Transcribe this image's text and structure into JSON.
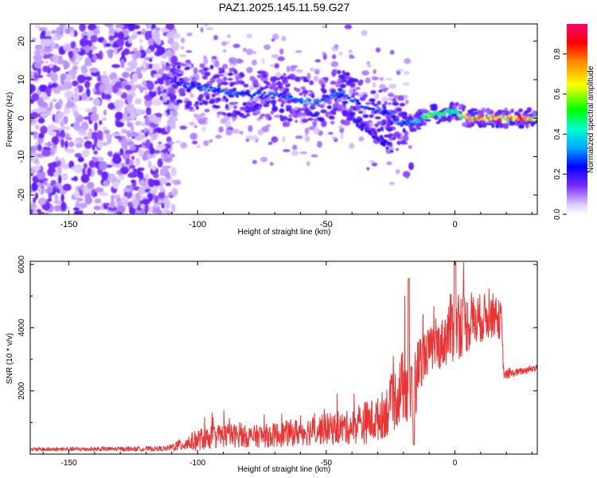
{
  "title": "PAZ1.2025.145.11.59.G27",
  "chart_data": [
    {
      "type": "heatmap",
      "name": "spectrogram",
      "xlabel": "Height of straight line (km)",
      "ylabel": "Frequency (Hz)",
      "xlim": [
        -165,
        32
      ],
      "ylim": [
        -25,
        24.5
      ],
      "xticks": [
        -150,
        -100,
        -50,
        0
      ],
      "yticks": [
        -20,
        -10,
        0,
        10,
        20
      ],
      "colorbar": {
        "label": "Normalized spectral amplitude",
        "range": [
          0.0,
          0.95
        ],
        "ticks": [
          0.0,
          0.2,
          0.4,
          0.6,
          0.8
        ],
        "tick_labels": [
          "0.0",
          "0.2",
          "0.4",
          "0.6",
          "0.8"
        ]
      },
      "ridge": [
        {
          "x": -110,
          "freq": 9,
          "amp": 0.25
        },
        {
          "x": -100,
          "freq": 8,
          "amp": 0.3
        },
        {
          "x": -90,
          "freq": 7,
          "amp": 0.35
        },
        {
          "x": -80,
          "freq": 6,
          "amp": 0.3
        },
        {
          "x": -70,
          "freq": 6,
          "amp": 0.3
        },
        {
          "x": -60,
          "freq": 5,
          "amp": 0.35
        },
        {
          "x": -55,
          "freq": 4,
          "amp": 0.35
        },
        {
          "x": -50,
          "freq": 5,
          "amp": 0.3
        },
        {
          "x": -45,
          "freq": 7,
          "amp": 0.35
        },
        {
          "x": -40,
          "freq": 5,
          "amp": 0.3
        },
        {
          "x": -35,
          "freq": 3,
          "amp": 0.3
        },
        {
          "x": -30,
          "freq": 2,
          "amp": 0.3
        },
        {
          "x": -25,
          "freq": 1,
          "amp": 0.3
        },
        {
          "x": -22,
          "freq": -1,
          "amp": 0.35
        },
        {
          "x": -18,
          "freq": -1,
          "amp": 0.3
        },
        {
          "x": -15,
          "freq": -1,
          "amp": 0.35
        },
        {
          "x": -10,
          "freq": 1,
          "amp": 0.55
        },
        {
          "x": -5,
          "freq": 1,
          "amp": 0.5
        },
        {
          "x": 0,
          "freq": 2,
          "amp": 0.55
        },
        {
          "x": 5,
          "freq": 0,
          "amp": 0.75
        },
        {
          "x": 10,
          "freq": 0,
          "amp": 0.8
        },
        {
          "x": 15,
          "freq": 0,
          "amp": 0.85
        },
        {
          "x": 20,
          "freq": 0,
          "amp": 0.8
        },
        {
          "x": 25,
          "freq": 0,
          "amp": 0.85
        },
        {
          "x": 32,
          "freq": 0,
          "amp": 0.75
        }
      ]
    },
    {
      "type": "line",
      "name": "snr",
      "xlabel": "Height of straight line (km)",
      "ylabel": "SNR (10 * v/v)",
      "xlim": [
        -165,
        32
      ],
      "ylim": [
        0,
        6100
      ],
      "xticks": [
        -150,
        -100,
        -50,
        0
      ],
      "yticks": [
        2000,
        4000,
        6000
      ],
      "color": "#ee3333",
      "envelope": [
        {
          "x": -165,
          "mean": 150,
          "spread": 60
        },
        {
          "x": -112,
          "mean": 170,
          "spread": 80
        },
        {
          "x": -100,
          "mean": 450,
          "spread": 350
        },
        {
          "x": -90,
          "mean": 600,
          "spread": 400
        },
        {
          "x": -80,
          "mean": 550,
          "spread": 350
        },
        {
          "x": -70,
          "mean": 600,
          "spread": 400
        },
        {
          "x": -60,
          "mean": 700,
          "spread": 450
        },
        {
          "x": -50,
          "mean": 800,
          "spread": 500
        },
        {
          "x": -40,
          "mean": 850,
          "spread": 550
        },
        {
          "x": -35,
          "mean": 1000,
          "spread": 700
        },
        {
          "x": -30,
          "mean": 1100,
          "spread": 700
        },
        {
          "x": -25,
          "mean": 1500,
          "spread": 900
        },
        {
          "x": -20,
          "mean": 2200,
          "spread": 1200
        },
        {
          "x": -16,
          "mean": 1800,
          "spread": 1400
        },
        {
          "x": -14,
          "mean": 2900,
          "spread": 900
        },
        {
          "x": -10,
          "mean": 3300,
          "spread": 700
        },
        {
          "x": -5,
          "mean": 3500,
          "spread": 800
        },
        {
          "x": 0,
          "mean": 4200,
          "spread": 1300
        },
        {
          "x": 5,
          "mean": 4100,
          "spread": 900
        },
        {
          "x": 10,
          "mean": 4300,
          "spread": 800
        },
        {
          "x": 15,
          "mean": 4400,
          "spread": 700
        },
        {
          "x": 18,
          "mean": 4200,
          "spread": 600
        },
        {
          "x": 19,
          "mean": 2500,
          "spread": 150
        },
        {
          "x": 25,
          "mean": 2600,
          "spread": 120
        },
        {
          "x": 32,
          "mean": 2750,
          "spread": 120
        }
      ]
    }
  ]
}
